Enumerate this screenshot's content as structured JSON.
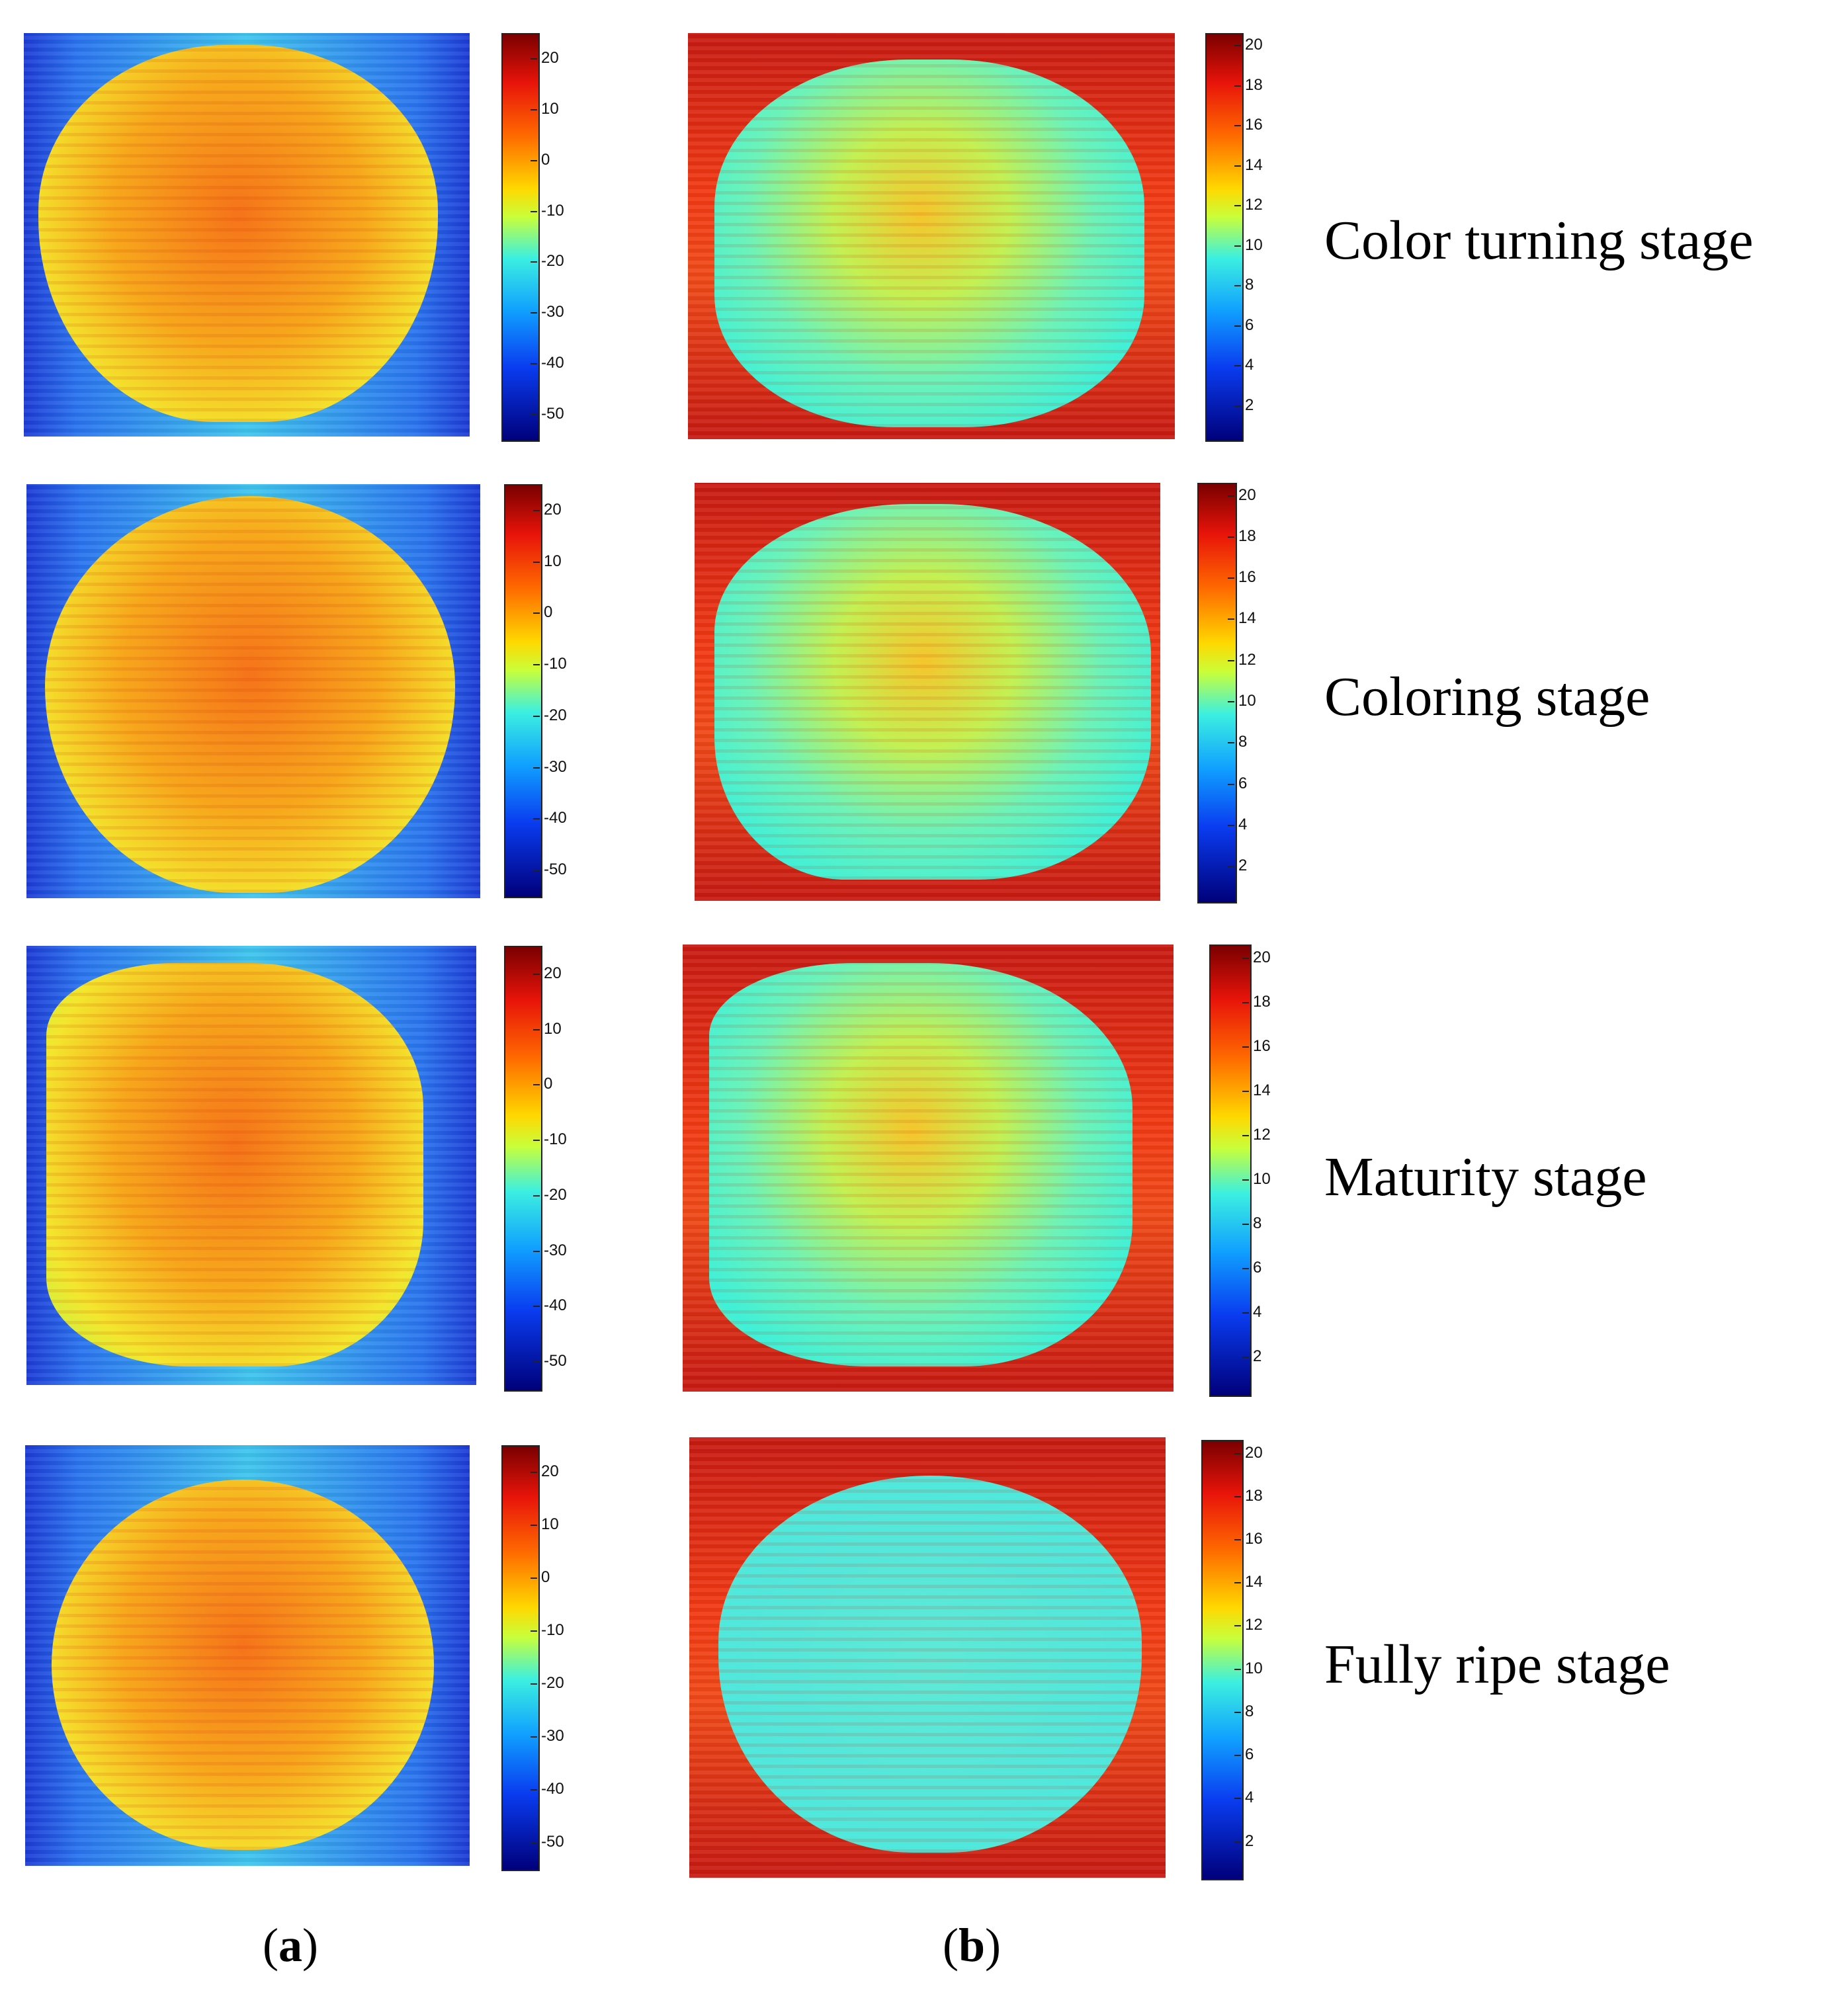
{
  "chart_data": {
    "type": "heatmap",
    "panels": [
      {
        "id": "a",
        "label": "a",
        "colorbar": {
          "ticks": [
            20,
            10,
            0,
            -10,
            -20,
            -30,
            -40,
            -50
          ]
        }
      },
      {
        "id": "b",
        "label": "b",
        "colorbar": {
          "ticks": [
            20,
            18,
            16,
            14,
            12,
            10,
            8,
            6,
            4,
            2
          ]
        }
      }
    ],
    "rows": [
      {
        "stage": "Color turning stage"
      },
      {
        "stage": "Coloring stage"
      },
      {
        "stage": "Maturity stage"
      },
      {
        "stage": "Fully ripe stage"
      }
    ]
  },
  "captions": {
    "a": "a",
    "b": "b"
  }
}
